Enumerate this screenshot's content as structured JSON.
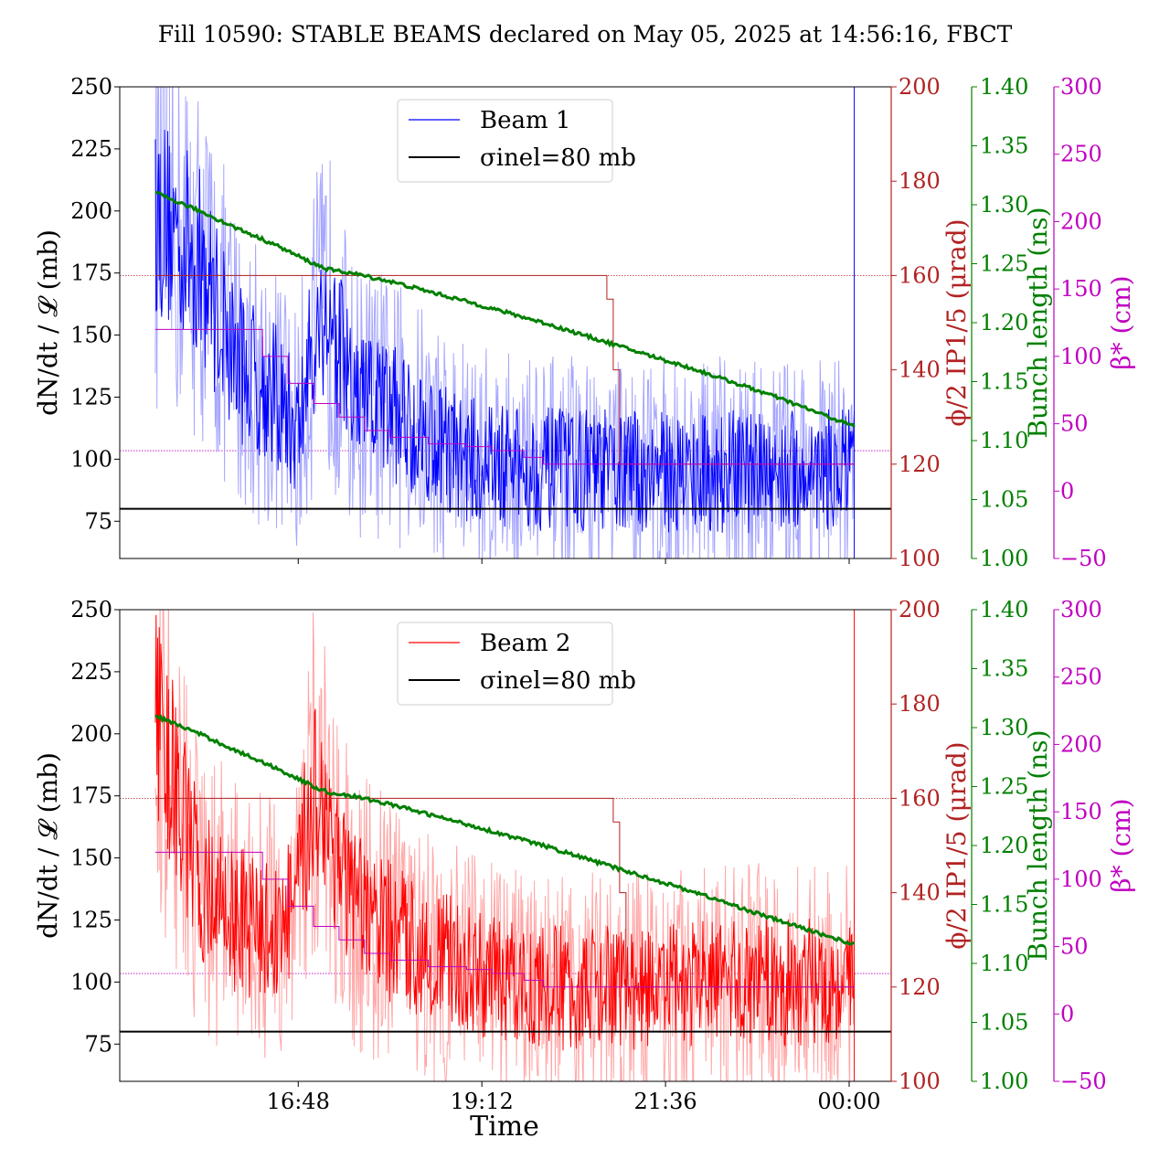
{
  "title": "Fill 10590: STABLE BEAMS declared on May 05, 2025 at 14:56:16, FBCT",
  "xlabel": "Time",
  "colors": {
    "axis_left": "#000000",
    "phi": "#b22222",
    "bunch": "#008000",
    "beta": "#c000c0",
    "beam1": "#0000ff",
    "beam1_light": "#a6a6ff",
    "beam2": "#ff0000",
    "beam2_light": "#ffa6a6",
    "sigma": "#000000"
  },
  "chart_data": [
    {
      "type": "line",
      "panel": "top",
      "legend": [
        "Beam 1",
        "σinel=80 mb"
      ],
      "legend_position": "top-center",
      "ylabel_left": "dN/dt / 𝓛 (mb)",
      "ylabel_phi": "ϕ/2 IP1/5 (μrad)",
      "ylabel_bunch": "Bunch length (ns)",
      "ylabel_beta": "β* (cm)",
      "x_range": [
        "14:56",
        "00:36"
      ],
      "x_ticks": [
        "16:48",
        "19:12",
        "21:36",
        "00:00"
      ],
      "ylim_left": [
        60,
        250
      ],
      "yticks_left": [
        "75",
        "100",
        "125",
        "150",
        "175",
        "200",
        "225",
        "250"
      ],
      "ylim_phi": [
        100,
        200
      ],
      "yticks_phi": [
        "100",
        "120",
        "140",
        "160",
        "180",
        "200"
      ],
      "ylim_bunch": [
        1.0,
        1.4
      ],
      "yticks_bunch": [
        "1.00",
        "1.05",
        "1.10",
        "1.15",
        "1.20",
        "1.25",
        "1.30",
        "1.35",
        "1.40"
      ],
      "ylim_beta": [
        -50,
        300
      ],
      "yticks_beta": [
        "−50",
        "0",
        "50",
        "100",
        "150",
        "200",
        "250",
        "300"
      ],
      "series": [
        {
          "name": "Beam 1",
          "axis": "left",
          "style": "noisy",
          "x": [
            "14:56",
            "15:30",
            "16:00",
            "16:30",
            "16:48",
            "17:00",
            "17:12",
            "17:30",
            "18:00",
            "18:30",
            "19:00",
            "19:30",
            "20:00",
            "20:30",
            "21:00",
            "21:30",
            "22:00",
            "22:30",
            "23:00",
            "23:30",
            "00:04"
          ],
          "values": [
            200,
            180,
            140,
            125,
            110,
            150,
            160,
            125,
            120,
            110,
            100,
            97,
            96,
            96,
            95,
            95,
            95,
            95,
            95,
            95,
            96
          ]
        },
        {
          "name": "σinel=80 mb",
          "axis": "left",
          "style": "flat",
          "x": [
            "14:30",
            "00:40"
          ],
          "values": [
            80,
            80
          ]
        },
        {
          "axis": "phi",
          "style": "step",
          "x": [
            "14:56",
            "20:46",
            "20:50",
            "20:55",
            "21:00"
          ],
          "values": [
            160,
            160,
            155,
            140,
            120
          ]
        },
        {
          "axis": "bunch",
          "style": "line",
          "x": [
            "14:56",
            "15:30",
            "16:00",
            "16:30",
            "17:00",
            "17:12",
            "17:30",
            "18:00",
            "19:00",
            "20:00",
            "21:00",
            "22:00",
            "23:00",
            "00:04"
          ],
          "values": [
            1.31,
            1.295,
            1.28,
            1.266,
            1.25,
            1.245,
            1.242,
            1.235,
            1.218,
            1.2,
            1.18,
            1.16,
            1.138,
            1.112
          ]
        },
        {
          "axis": "beta",
          "style": "step",
          "x": [
            "14:56",
            "16:00",
            "16:20",
            "16:40",
            "17:00",
            "17:20",
            "17:40",
            "18:00",
            "18:30",
            "19:00",
            "19:20",
            "19:45",
            "20:00",
            "00:04"
          ],
          "values": [
            120,
            120,
            100,
            80,
            65,
            55,
            45,
            40,
            35,
            33,
            30,
            25,
            20,
            20
          ]
        }
      ],
      "reference_lines": [
        {
          "axis": "phi",
          "value": 160
        },
        {
          "axis": "beta",
          "value": 30
        }
      ]
    },
    {
      "type": "line",
      "panel": "bottom",
      "legend": [
        "Beam 2",
        "σinel=80 mb"
      ],
      "legend_position": "top-center",
      "ylabel_left": "dN/dt / 𝓛 (mb)",
      "ylabel_phi": "ϕ/2 IP1/5 (μrad)",
      "ylabel_bunch": "Bunch length (ns)",
      "ylabel_beta": "β* (cm)",
      "x_range": [
        "14:56",
        "00:36"
      ],
      "x_ticks": [
        "16:48",
        "19:12",
        "21:36",
        "00:00"
      ],
      "ylim_left": [
        60,
        250
      ],
      "yticks_left": [
        "75",
        "100",
        "125",
        "150",
        "175",
        "200",
        "225",
        "250"
      ],
      "ylim_phi": [
        100,
        200
      ],
      "yticks_phi": [
        "100",
        "120",
        "140",
        "160",
        "180",
        "200"
      ],
      "ylim_bunch": [
        1.0,
        1.4
      ],
      "yticks_bunch": [
        "1.00",
        "1.05",
        "1.10",
        "1.15",
        "1.20",
        "1.25",
        "1.30",
        "1.35",
        "1.40"
      ],
      "ylim_beta": [
        -50,
        300
      ],
      "yticks_beta": [
        "−50",
        "0",
        "50",
        "100",
        "150",
        "200",
        "250",
        "300"
      ],
      "series": [
        {
          "name": "Beam 2",
          "axis": "left",
          "style": "noisy",
          "x": [
            "14:56",
            "15:30",
            "16:00",
            "16:30",
            "16:48",
            "17:00",
            "17:12",
            "17:30",
            "18:00",
            "18:30",
            "19:00",
            "19:30",
            "20:00",
            "20:30",
            "21:00",
            "21:30",
            "22:00",
            "22:30",
            "23:00",
            "23:30",
            "00:04"
          ],
          "values": [
            210,
            140,
            125,
            120,
            135,
            180,
            165,
            130,
            120,
            112,
            105,
            100,
            98,
            97,
            98,
            98,
            99,
            100,
            100,
            100,
            100
          ]
        },
        {
          "name": "σinel=80 mb",
          "axis": "left",
          "style": "flat",
          "x": [
            "14:30",
            "00:40"
          ],
          "values": [
            80,
            80
          ]
        },
        {
          "axis": "phi",
          "style": "step",
          "x": [
            "14:56",
            "20:50",
            "20:55",
            "21:00",
            "21:05"
          ],
          "values": [
            160,
            160,
            155,
            140,
            120
          ]
        },
        {
          "axis": "bunch",
          "style": "line",
          "x": [
            "14:56",
            "15:30",
            "16:00",
            "16:30",
            "17:00",
            "17:12",
            "17:30",
            "18:00",
            "19:00",
            "20:00",
            "21:00",
            "22:00",
            "23:00",
            "00:04"
          ],
          "values": [
            1.31,
            1.295,
            1.28,
            1.266,
            1.25,
            1.245,
            1.242,
            1.235,
            1.218,
            1.2,
            1.18,
            1.16,
            1.138,
            1.116
          ]
        },
        {
          "axis": "beta",
          "style": "step",
          "x": [
            "14:56",
            "16:05",
            "16:20",
            "16:40",
            "17:00",
            "17:20",
            "17:40",
            "18:00",
            "18:30",
            "19:00",
            "19:20",
            "19:45",
            "20:00",
            "00:04"
          ],
          "values": [
            120,
            120,
            100,
            80,
            65,
            55,
            45,
            40,
            35,
            33,
            30,
            25,
            20,
            20
          ]
        }
      ],
      "reference_lines": [
        {
          "axis": "phi",
          "value": 160
        },
        {
          "axis": "beta",
          "value": 30
        }
      ]
    }
  ]
}
